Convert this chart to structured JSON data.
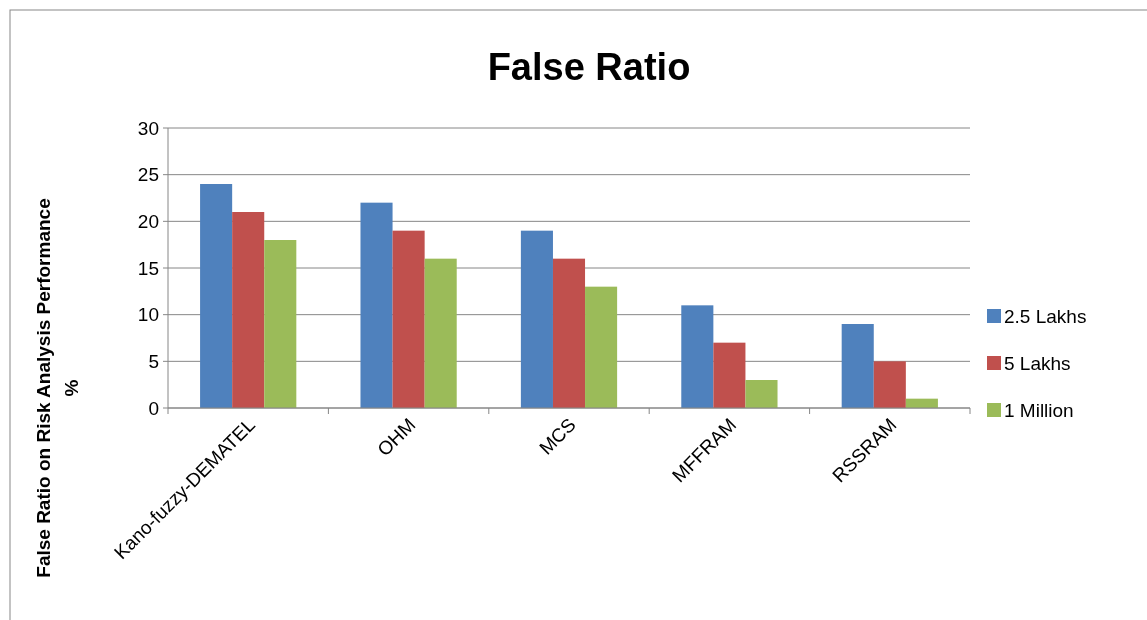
{
  "chart_data": {
    "type": "bar",
    "title": "False Ratio",
    "ylabel": "False Ratio on Risk Analysis Performance %",
    "categories": [
      "Kano-fuzzy-DEMATEL",
      "OHM",
      "MCS",
      "MFFRAM",
      "RSSRAM"
    ],
    "series": [
      {
        "name": "2.5 Lakhs",
        "color": "#4f81bd",
        "values": [
          24,
          22,
          19,
          11,
          9
        ]
      },
      {
        "name": "5 Lakhs",
        "color": "#c0504d",
        "values": [
          21,
          19,
          16,
          7,
          5
        ]
      },
      {
        "name": "1 Million",
        "color": "#9bbb59",
        "values": [
          18,
          16,
          13,
          3,
          1
        ]
      }
    ],
    "ylim": [
      0,
      30
    ],
    "yticks": [
      0,
      5,
      10,
      15,
      20,
      25,
      30
    ],
    "grid": "y",
    "legend": "right"
  }
}
